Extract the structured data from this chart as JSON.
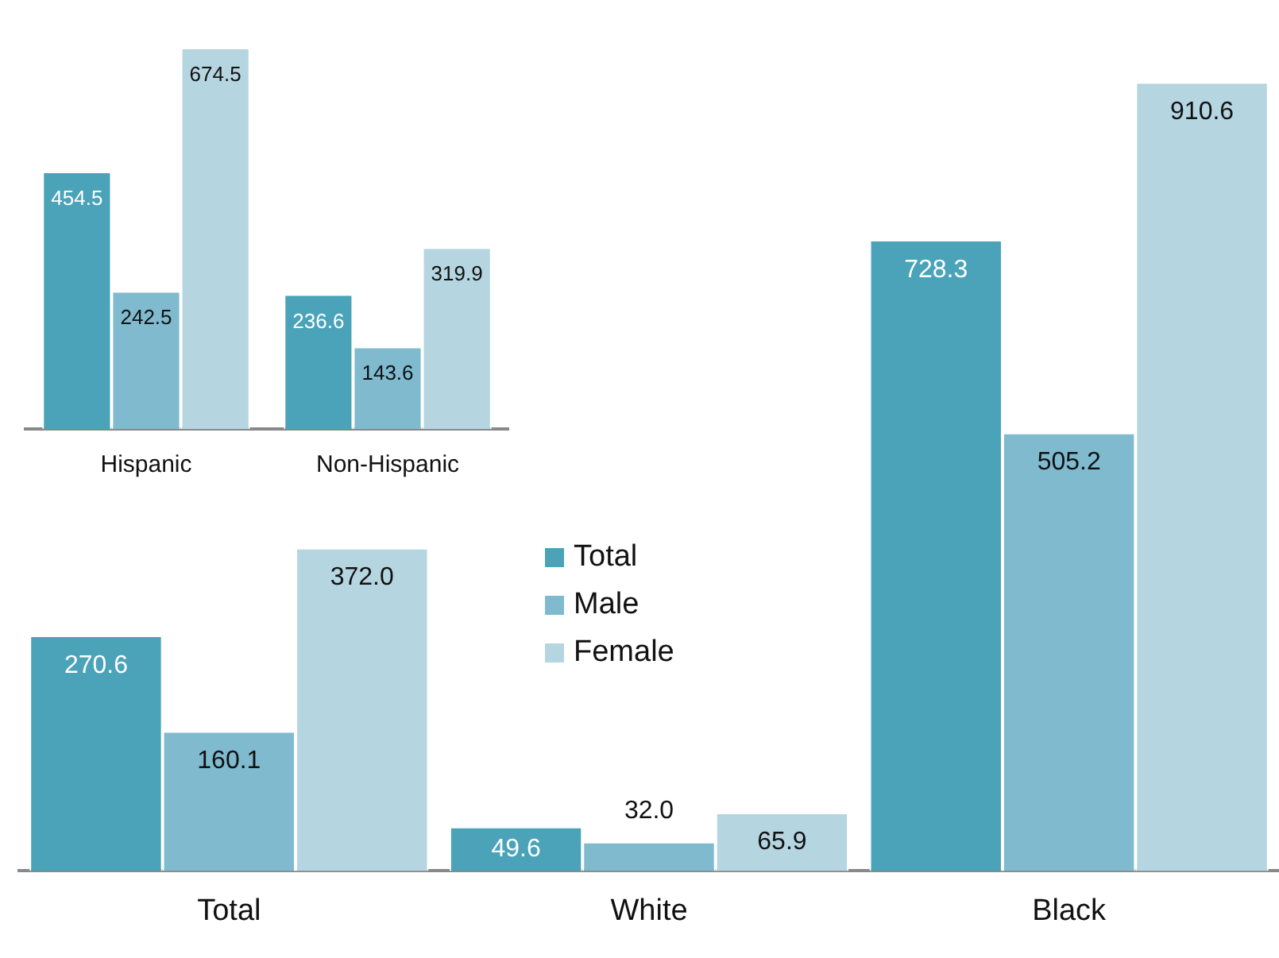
{
  "chart_data": [
    {
      "type": "bar",
      "categories": [
        "Total",
        "White",
        "Black"
      ],
      "series": [
        {
          "name": "Total",
          "color": "#4aa3b9",
          "values": [
            270.6,
            49.6,
            728.3
          ],
          "value_labels": [
            "270.6",
            "49.6",
            "728.3"
          ]
        },
        {
          "name": "Male",
          "color": "#7fbacf",
          "values": [
            160.1,
            32.0,
            505.2
          ],
          "value_labels": [
            "160.1",
            "32.0",
            "505.2"
          ]
        },
        {
          "name": "Female",
          "color": "#b5d5e0",
          "values": [
            372.0,
            65.9,
            910.6
          ],
          "value_labels": [
            "372.0",
            "65.9",
            "910.6"
          ]
        }
      ],
      "grid": false,
      "legend": "center",
      "tick_labels": "x"
    },
    {
      "type": "bar",
      "categories": [
        "Hispanic",
        "Non-Hispanic"
      ],
      "series": [
        {
          "color": "#4aa3b9",
          "values": [
            454.5,
            236.6
          ],
          "value_labels": [
            "454.5",
            "236.6"
          ]
        },
        {
          "color": "#7fbacf",
          "values": [
            242.5,
            143.6
          ],
          "value_labels": [
            "242.5",
            "143.6"
          ]
        },
        {
          "color": "#b5d5e0",
          "values": [
            674.5,
            319.9
          ],
          "value_labels": [
            "674.5",
            "319.9"
          ]
        }
      ],
      "grid": false,
      "tick_labels": "x"
    }
  ]
}
